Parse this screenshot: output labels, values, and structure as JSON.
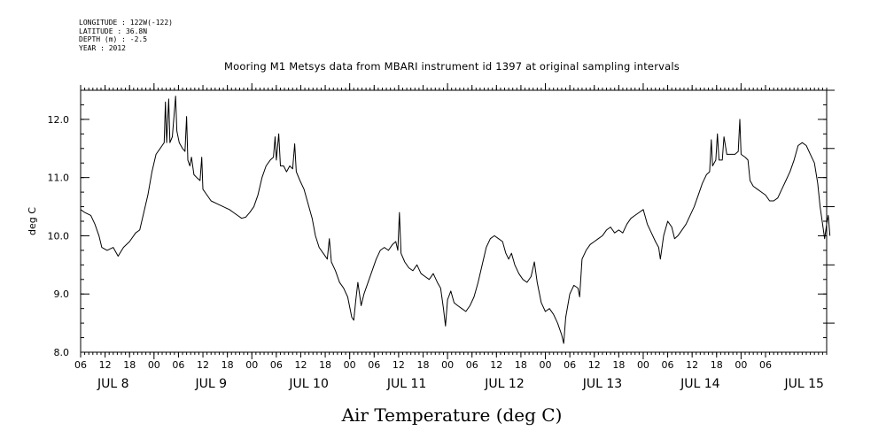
{
  "header": {
    "longitude": "LONGITUDE : 122W(-122)",
    "latitude": "LATITUDE : 36.8N",
    "depth": "DEPTH (m) : -2.5",
    "year": "YEAR : 2012"
  },
  "chart_data": {
    "type": "line",
    "title": "Mooring M1 Metsys data from MBARI instrument id 1397 at original sampling intervals",
    "xlabel": "Air Temperature (deg C)",
    "ylabel": "deg C",
    "ylim": [
      8.0,
      12.5
    ],
    "y_ticks": [
      "8.0",
      "9.0",
      "10.0",
      "11.0",
      "12.0"
    ],
    "x_unit": "hours since JUL 8 00:00, 2012",
    "xlim": [
      -18,
      165
    ],
    "x_hour_ticks": [
      "06",
      "12",
      "18",
      "00",
      "06",
      "12",
      "18",
      "00",
      "06",
      "12",
      "18",
      "00",
      "06",
      "12",
      "18",
      "00",
      "06",
      "12",
      "18",
      "00",
      "06",
      "12",
      "18",
      "00",
      "06",
      "12",
      "18",
      "00",
      "06"
    ],
    "x_day_labels": [
      "JUL  8",
      "JUL  9",
      "JUL 10",
      "JUL 11",
      "JUL 12",
      "JUL 13",
      "JUL 14",
      "JUL 15"
    ],
    "grid": false,
    "series": [
      {
        "name": "",
        "color": "#000000",
        "points": [
          [
            -18.0,
            10.45
          ],
          [
            -17.0,
            10.4
          ],
          [
            -15.5,
            10.35
          ],
          [
            -14.5,
            10.2
          ],
          [
            -13.5,
            10.0
          ],
          [
            -12.8,
            9.8
          ],
          [
            -11.5,
            9.75
          ],
          [
            -10.0,
            9.8
          ],
          [
            -8.8,
            9.65
          ],
          [
            -7.5,
            9.8
          ],
          [
            -6.0,
            9.9
          ],
          [
            -4.5,
            10.05
          ],
          [
            -3.5,
            10.1
          ],
          [
            -2.5,
            10.4
          ],
          [
            -1.5,
            10.7
          ],
          [
            -0.5,
            11.1
          ],
          [
            0.5,
            11.4
          ],
          [
            1.5,
            11.5
          ],
          [
            2.0,
            11.55
          ],
          [
            2.5,
            11.6
          ],
          [
            2.8,
            12.3
          ],
          [
            3.1,
            11.6
          ],
          [
            3.6,
            12.35
          ],
          [
            3.9,
            11.6
          ],
          [
            4.5,
            11.7
          ],
          [
            5.3,
            12.4
          ],
          [
            5.6,
            11.8
          ],
          [
            6.2,
            11.6
          ],
          [
            7.0,
            11.5
          ],
          [
            7.6,
            11.45
          ],
          [
            8.0,
            12.05
          ],
          [
            8.3,
            11.3
          ],
          [
            8.8,
            11.2
          ],
          [
            9.2,
            11.35
          ],
          [
            9.8,
            11.05
          ],
          [
            10.5,
            11.0
          ],
          [
            11.3,
            10.95
          ],
          [
            11.7,
            11.35
          ],
          [
            12.0,
            10.8
          ],
          [
            13.0,
            10.7
          ],
          [
            14.0,
            10.6
          ],
          [
            15.5,
            10.55
          ],
          [
            17.0,
            10.5
          ],
          [
            18.5,
            10.45
          ],
          [
            19.5,
            10.4
          ],
          [
            20.5,
            10.35
          ],
          [
            21.5,
            10.3
          ],
          [
            22.5,
            10.32
          ],
          [
            23.5,
            10.4
          ],
          [
            24.5,
            10.5
          ],
          [
            25.5,
            10.7
          ],
          [
            26.5,
            11.0
          ],
          [
            27.5,
            11.2
          ],
          [
            28.5,
            11.3
          ],
          [
            29.3,
            11.35
          ],
          [
            29.7,
            11.7
          ],
          [
            30.0,
            11.3
          ],
          [
            30.6,
            11.75
          ],
          [
            31.0,
            11.2
          ],
          [
            31.8,
            11.2
          ],
          [
            32.5,
            11.1
          ],
          [
            33.3,
            11.2
          ],
          [
            34.0,
            11.15
          ],
          [
            34.5,
            11.58
          ],
          [
            34.9,
            11.1
          ],
          [
            35.8,
            10.95
          ],
          [
            36.8,
            10.8
          ],
          [
            37.8,
            10.55
          ],
          [
            38.8,
            10.3
          ],
          [
            39.6,
            10.0
          ],
          [
            40.5,
            9.8
          ],
          [
            41.5,
            9.7
          ],
          [
            42.5,
            9.6
          ],
          [
            43.0,
            9.95
          ],
          [
            43.5,
            9.55
          ],
          [
            44.5,
            9.4
          ],
          [
            45.5,
            9.2
          ],
          [
            46.5,
            9.1
          ],
          [
            47.5,
            8.95
          ],
          [
            48.5,
            8.6
          ],
          [
            49.0,
            8.55
          ],
          [
            49.5,
            8.9
          ],
          [
            50.0,
            9.2
          ],
          [
            50.8,
            8.8
          ],
          [
            51.5,
            9.0
          ],
          [
            52.5,
            9.2
          ],
          [
            53.5,
            9.4
          ],
          [
            54.5,
            9.6
          ],
          [
            55.5,
            9.75
          ],
          [
            56.5,
            9.8
          ],
          [
            57.5,
            9.75
          ],
          [
            58.5,
            9.85
          ],
          [
            59.3,
            9.9
          ],
          [
            59.8,
            9.75
          ],
          [
            60.2,
            10.4
          ],
          [
            60.6,
            9.7
          ],
          [
            61.5,
            9.55
          ],
          [
            62.5,
            9.45
          ],
          [
            63.5,
            9.4
          ],
          [
            64.5,
            9.5
          ],
          [
            65.5,
            9.35
          ],
          [
            66.5,
            9.3
          ],
          [
            67.5,
            9.25
          ],
          [
            68.5,
            9.35
          ],
          [
            69.5,
            9.2
          ],
          [
            70.3,
            9.1
          ],
          [
            71.0,
            8.75
          ],
          [
            71.5,
            8.45
          ],
          [
            72.0,
            8.9
          ],
          [
            72.8,
            9.05
          ],
          [
            73.6,
            8.85
          ],
          [
            74.5,
            8.8
          ],
          [
            75.5,
            8.75
          ],
          [
            76.5,
            8.7
          ],
          [
            77.5,
            8.8
          ],
          [
            78.5,
            8.95
          ],
          [
            79.5,
            9.2
          ],
          [
            80.5,
            9.5
          ],
          [
            81.5,
            9.8
          ],
          [
            82.5,
            9.95
          ],
          [
            83.5,
            10.0
          ],
          [
            84.5,
            9.95
          ],
          [
            85.5,
            9.9
          ],
          [
            86.3,
            9.7
          ],
          [
            87.0,
            9.6
          ],
          [
            87.7,
            9.7
          ],
          [
            88.5,
            9.5
          ],
          [
            89.5,
            9.35
          ],
          [
            90.5,
            9.25
          ],
          [
            91.5,
            9.2
          ],
          [
            92.5,
            9.3
          ],
          [
            93.3,
            9.55
          ],
          [
            94.0,
            9.2
          ],
          [
            95.0,
            8.85
          ],
          [
            96.0,
            8.7
          ],
          [
            97.0,
            8.75
          ],
          [
            98.0,
            8.65
          ],
          [
            99.0,
            8.5
          ],
          [
            100.0,
            8.3
          ],
          [
            100.5,
            8.15
          ],
          [
            101.0,
            8.6
          ],
          [
            102.0,
            9.0
          ],
          [
            103.0,
            9.15
          ],
          [
            104.0,
            9.1
          ],
          [
            104.4,
            8.95
          ],
          [
            105.0,
            9.6
          ],
          [
            106.0,
            9.75
          ],
          [
            107.0,
            9.85
          ],
          [
            108.0,
            9.9
          ],
          [
            109.0,
            9.95
          ],
          [
            110.0,
            10.0
          ],
          [
            111.0,
            10.1
          ],
          [
            112.0,
            10.15
          ],
          [
            113.0,
            10.05
          ],
          [
            114.0,
            10.1
          ],
          [
            115.0,
            10.05
          ],
          [
            116.0,
            10.2
          ],
          [
            117.0,
            10.3
          ],
          [
            118.0,
            10.35
          ],
          [
            119.0,
            10.4
          ],
          [
            120.0,
            10.45
          ],
          [
            121.0,
            10.2
          ],
          [
            122.0,
            10.05
          ],
          [
            123.0,
            9.9
          ],
          [
            123.8,
            9.8
          ],
          [
            124.2,
            9.6
          ],
          [
            125.0,
            10.0
          ],
          [
            126.0,
            10.25
          ],
          [
            127.0,
            10.15
          ],
          [
            127.7,
            9.95
          ],
          [
            128.5,
            10.0
          ],
          [
            129.5,
            10.1
          ],
          [
            130.5,
            10.2
          ],
          [
            131.5,
            10.35
          ],
          [
            132.5,
            10.5
          ],
          [
            133.5,
            10.7
          ],
          [
            134.5,
            10.9
          ],
          [
            135.5,
            11.05
          ],
          [
            136.3,
            11.1
          ],
          [
            136.7,
            11.65
          ],
          [
            137.0,
            11.2
          ],
          [
            137.8,
            11.3
          ],
          [
            138.2,
            11.75
          ],
          [
            138.6,
            11.3
          ],
          [
            139.4,
            11.3
          ],
          [
            139.8,
            11.7
          ],
          [
            140.5,
            11.4
          ],
          [
            141.5,
            11.4
          ],
          [
            142.5,
            11.4
          ],
          [
            143.3,
            11.45
          ],
          [
            143.7,
            12.0
          ],
          [
            144.0,
            11.4
          ],
          [
            145.0,
            11.35
          ],
          [
            145.7,
            11.3
          ],
          [
            146.2,
            10.95
          ],
          [
            147.0,
            10.85
          ],
          [
            148.0,
            10.8
          ],
          [
            149.0,
            10.75
          ],
          [
            150.0,
            10.7
          ],
          [
            151.0,
            10.6
          ],
          [
            152.0,
            10.6
          ],
          [
            153.0,
            10.65
          ],
          [
            154.0,
            10.8
          ],
          [
            155.0,
            10.95
          ],
          [
            156.0,
            11.1
          ],
          [
            157.0,
            11.3
          ],
          [
            158.0,
            11.55
          ],
          [
            159.0,
            11.6
          ],
          [
            160.0,
            11.55
          ],
          [
            161.0,
            11.4
          ],
          [
            162.0,
            11.25
          ],
          [
            162.8,
            10.9
          ],
          [
            163.4,
            10.5
          ],
          [
            164.0,
            10.2
          ],
          [
            164.5,
            9.95
          ],
          [
            165.0,
            10.2
          ],
          [
            165.4,
            10.35
          ],
          [
            165.8,
            10.0
          ]
        ]
      }
    ]
  }
}
